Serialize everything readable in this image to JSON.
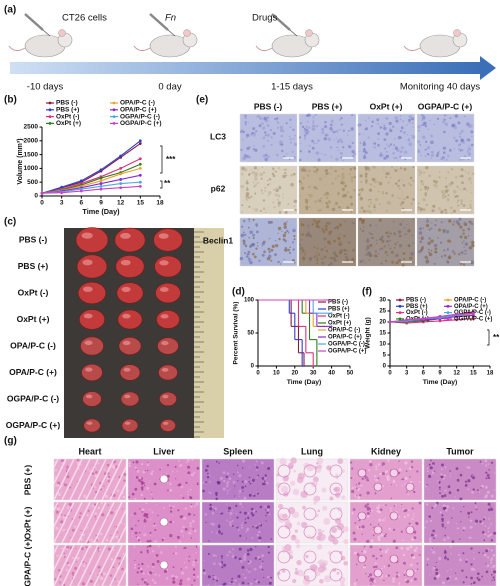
{
  "panel_labels": [
    "(a)",
    "(b)",
    "(c)",
    "(d)",
    "(e)",
    "(f)",
    "(g)"
  ],
  "timeline": {
    "treatments": [
      "CT26 cells",
      "Fn",
      "Drugs"
    ],
    "times": [
      "-10 days",
      "0 day",
      "1-15 days",
      "Monitoring 40 days"
    ]
  },
  "tumor_photo": {
    "groups": [
      "PBS (-)",
      "PBS (+)",
      "OxPt (-)",
      "OxPt (+)",
      "OPA/P-C (-)",
      "OPA/P-C (+)",
      "OGPA/P-C (-)",
      "OGPA/P-C (+)"
    ]
  },
  "ihc": {
    "columns": [
      "PBS (-)",
      "PBS (+)",
      "OxPt (+)",
      "OGPA/P-C (+)"
    ],
    "rows": [
      "LC3",
      "p62",
      "Beclin1"
    ]
  },
  "histology": {
    "columns": [
      "Heart",
      "Liver",
      "Spleen",
      "Lung",
      "Kidney",
      "Tumor"
    ],
    "rows": [
      "PBS (+)",
      "OxPt (+)",
      "OGPA/P-C (+)"
    ]
  },
  "chart_data": [
    {
      "type": "line",
      "x_label": "Time (Day)",
      "y_label": "Volume (mm³)",
      "annotations": [
        "***",
        "**"
      ],
      "x": [
        0,
        3,
        6,
        9,
        12,
        15
      ],
      "xlim": [
        0,
        18
      ],
      "xticks": [
        0,
        3,
        6,
        9,
        12,
        15,
        18
      ],
      "ylim": [
        0,
        2500
      ],
      "yticks": [
        0,
        500,
        1000,
        1500,
        2000,
        2500
      ],
      "series": [
        {
          "name": "PBS (-)",
          "color": "#8b1a3a",
          "values": [
            100,
            300,
            500,
            900,
            1400,
            1900
          ]
        },
        {
          "name": "PBS (+)",
          "color": "#2a3fd0",
          "values": [
            100,
            320,
            550,
            950,
            1450,
            2000
          ]
        },
        {
          "name": "OxPt (-)",
          "color": "#e0307a",
          "values": [
            100,
            250,
            450,
            700,
            1000,
            1350
          ]
        },
        {
          "name": "OxPt (+)",
          "color": "#2e7d1e",
          "values": [
            100,
            220,
            400,
            650,
            850,
            1150
          ]
        },
        {
          "name": "OPA/P-C (-)",
          "color": "#f0a030",
          "values": [
            100,
            200,
            350,
            550,
            800,
            1000
          ]
        },
        {
          "name": "OPA/P-C (+)",
          "color": "#8a2bd0",
          "values": [
            100,
            180,
            300,
            450,
            600,
            750
          ]
        },
        {
          "name": "OGPA/P-C (-)",
          "color": "#4aa8e8",
          "values": [
            100,
            150,
            250,
            350,
            450,
            500
          ]
        },
        {
          "name": "OGPA/P-C (+)",
          "color": "#d040c0",
          "values": [
            100,
            120,
            180,
            250,
            300,
            350
          ]
        }
      ]
    },
    {
      "type": "step",
      "x_label": "Time (Day)",
      "y_label": "Percent Survival (%)",
      "xlim": [
        0,
        50
      ],
      "xticks": [
        0,
        10,
        20,
        30,
        40,
        50
      ],
      "ylim": [
        0,
        100
      ],
      "yticks": [
        0,
        50,
        100
      ],
      "series": [
        {
          "name": "PBS (-)",
          "color": "#8b1a3a",
          "x": [
            0,
            18,
            22,
            25
          ],
          "values": [
            100,
            60,
            20,
            0
          ]
        },
        {
          "name": "PBS (+)",
          "color": "#2a3fd0",
          "x": [
            0,
            17,
            20,
            24
          ],
          "values": [
            100,
            80,
            40,
            0
          ]
        },
        {
          "name": "OxPt (-)",
          "color": "#e0307a",
          "x": [
            0,
            22,
            26,
            30
          ],
          "values": [
            100,
            60,
            20,
            0
          ]
        },
        {
          "name": "OxPt (+)",
          "color": "#2e7d1e",
          "x": [
            0,
            24,
            28,
            32
          ],
          "values": [
            100,
            80,
            40,
            0
          ]
        },
        {
          "name": "OPA/P-C (-)",
          "color": "#f0a030",
          "x": [
            0,
            26,
            30,
            36
          ],
          "values": [
            100,
            80,
            60,
            60
          ]
        },
        {
          "name": "OPA/P-C (+)",
          "color": "#8a2bd0",
          "x": [
            0,
            28,
            32,
            40
          ],
          "values": [
            100,
            80,
            60,
            60
          ]
        },
        {
          "name": "OGPA/P-C (-)",
          "color": "#4aa8e8",
          "x": [
            0,
            30,
            40
          ],
          "values": [
            100,
            80,
            80
          ]
        },
        {
          "name": "OGPA/P-C (+)",
          "color": "#d040c0",
          "x": [
            0,
            35,
            40
          ],
          "values": [
            100,
            100,
            100
          ]
        }
      ]
    },
    {
      "type": "line",
      "x_label": "Time (Day)",
      "y_label": "Weight (g)",
      "annotations": [
        "**"
      ],
      "x": [
        0,
        3,
        6,
        9,
        12,
        15
      ],
      "xlim": [
        0,
        18
      ],
      "xticks": [
        0,
        3,
        6,
        9,
        12,
        15,
        18
      ],
      "ylim": [
        0,
        30
      ],
      "yticks": [
        0,
        5,
        10,
        15,
        20,
        25,
        30
      ],
      "series": [
        {
          "name": "PBS (-)",
          "color": "#8b1a3a",
          "values": [
            20,
            21,
            21.5,
            22.5,
            23.5,
            24.5
          ]
        },
        {
          "name": "PBS (+)",
          "color": "#2a3fd0",
          "values": [
            20,
            20.5,
            21.5,
            22,
            23,
            24
          ]
        },
        {
          "name": "OxPt (-)",
          "color": "#e0307a",
          "values": [
            20,
            19.5,
            20,
            20.5,
            21,
            21.5
          ]
        },
        {
          "name": "OxPt (+)",
          "color": "#2e7d1e",
          "values": [
            20,
            20,
            20.5,
            21.5,
            22.5,
            23
          ]
        },
        {
          "name": "OPA/P-C (-)",
          "color": "#f0a030",
          "values": [
            20,
            20.5,
            21,
            22,
            23,
            23.5
          ]
        },
        {
          "name": "OPA/P-C (+)",
          "color": "#8a2bd0",
          "values": [
            20,
            20.5,
            21,
            21.5,
            22.5,
            23
          ]
        },
        {
          "name": "OGPA/P-C (-)",
          "color": "#4aa8e8",
          "values": [
            20,
            20.5,
            21.5,
            22,
            23,
            24
          ]
        },
        {
          "name": "OGPA/P-C (+)",
          "color": "#d040c0",
          "values": [
            20,
            21,
            21.5,
            22.5,
            23.5,
            24
          ]
        }
      ]
    }
  ]
}
